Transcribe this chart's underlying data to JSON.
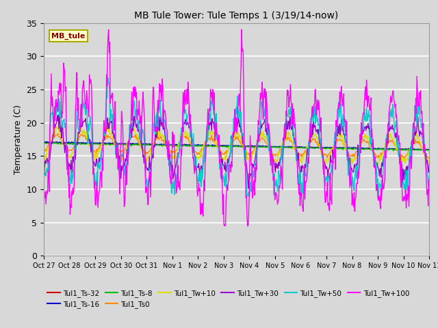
{
  "title": "MB Tule Tower: Tule Temps 1 (3/19/14-now)",
  "ylabel": "Temperature (C)",
  "ylim": [
    0,
    35
  ],
  "yticks": [
    0,
    5,
    10,
    15,
    20,
    25,
    30,
    35
  ],
  "plot_bg_color": "#d8d8d8",
  "grid_color": "#ffffff",
  "series": [
    {
      "label": "Tul1_Ts-32",
      "color": "#cc0000",
      "lw": 1.0
    },
    {
      "label": "Tul1_Ts-16",
      "color": "#0000cc",
      "lw": 1.0
    },
    {
      "label": "Tul1_Ts-8",
      "color": "#00bb00",
      "lw": 1.0
    },
    {
      "label": "Tul1_Ts0",
      "color": "#ff8800",
      "lw": 1.0
    },
    {
      "label": "Tul1_Tw+10",
      "color": "#dddd00",
      "lw": 1.0
    },
    {
      "label": "Tul1_Tw+30",
      "color": "#9900cc",
      "lw": 1.0
    },
    {
      "label": "Tul1_Tw+50",
      "color": "#00cccc",
      "lw": 1.0
    },
    {
      "label": "Tul1_Tw+100",
      "color": "#ff00ff",
      "lw": 1.0
    }
  ],
  "x_tick_labels": [
    "Oct 27",
    "Oct 28",
    "Oct 29",
    "Oct 30",
    "Oct 31",
    "Nov 1",
    "Nov 2",
    "Nov 3",
    "Nov 4",
    "Nov 5",
    "Nov 6",
    "Nov 7",
    "Nov 8",
    "Nov 9",
    "Nov 10",
    "Nov 11"
  ],
  "label_box_text": "MB_tule",
  "label_box_facecolor": "#ffffcc",
  "label_box_edgecolor": "#aaaa00"
}
